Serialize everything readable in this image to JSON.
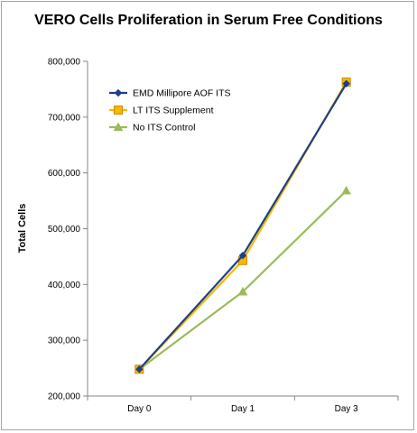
{
  "chart_data": {
    "type": "line",
    "title": "VERO Cells Proliferation in Serum Free Conditions",
    "ylabel": "Total Cells",
    "xlabel": "",
    "categories": [
      "Day 0",
      "Day 1",
      "Day 3"
    ],
    "ylim": [
      200000,
      800000
    ],
    "yticks": [
      {
        "value": 200000,
        "label": "200,000"
      },
      {
        "value": 300000,
        "label": "300,000"
      },
      {
        "value": 400000,
        "label": "400,000"
      },
      {
        "value": 500000,
        "label": "500,000"
      },
      {
        "value": 600000,
        "label": "600,000"
      },
      {
        "value": 700000,
        "label": "700,000"
      },
      {
        "value": 800000,
        "label": "800,000"
      }
    ],
    "grid": false,
    "legend_position": "top-left",
    "series": [
      {
        "name": "EMD Millipore AOF ITS",
        "values": [
          248000,
          452000,
          760000
        ],
        "color": "#1f3f86",
        "marker": "diamond"
      },
      {
        "name": "LT ITS Supplement",
        "values": [
          248000,
          443000,
          763000
        ],
        "color": "#f5b800",
        "marker": "square"
      },
      {
        "name": "No ITS Control",
        "values": [
          248000,
          387000,
          568000
        ],
        "color": "#9bbb59",
        "marker": "triangle"
      }
    ]
  }
}
